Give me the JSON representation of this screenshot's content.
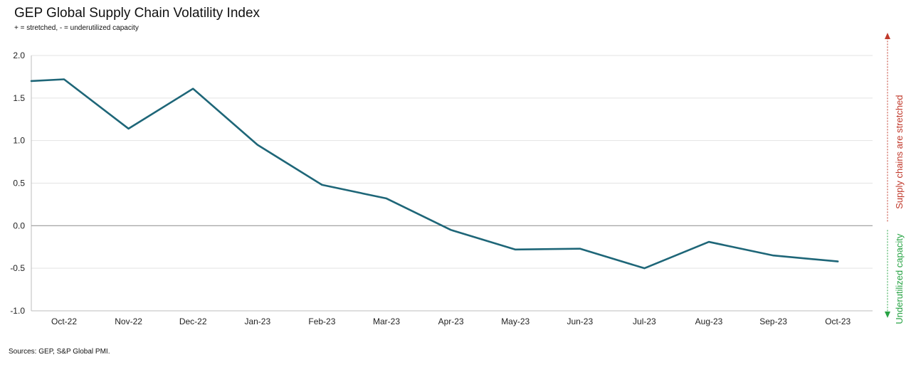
{
  "chart_data": {
    "type": "line",
    "title": "GEP Global Supply Chain Volatility Index",
    "subtitle": "+ = stretched, - = underutilized capacity",
    "source": "Sources: GEP, S&P Global PMI.",
    "categories": [
      "Oct-22",
      "Nov-22",
      "Dec-22",
      "Jan-23",
      "Feb-23",
      "Mar-23",
      "Apr-23",
      "May-23",
      "Jun-23",
      "Jul-23",
      "Aug-23",
      "Sep-23",
      "Oct-23"
    ],
    "series": [
      {
        "values": [
          1.72,
          1.14,
          1.61,
          0.95,
          0.48,
          0.32,
          -0.05,
          -0.28,
          -0.27,
          -0.5,
          -0.19,
          -0.35,
          -0.42
        ],
        "color": "#1e6678"
      }
    ],
    "series_start_value": 1.7,
    "ylim": [
      -1.0,
      2.0
    ],
    "yticks": [
      2.0,
      1.5,
      1.0,
      0.5,
      0.0,
      -0.5,
      -1.0
    ],
    "ytick_labels": [
      "2.0",
      "1.5",
      "1.0",
      "0.5",
      "0.0",
      "-0.5",
      "-1.0"
    ],
    "grid": true,
    "zero_line": true,
    "legend": "none",
    "annotations": {
      "up_label": "Supply chains are stretched",
      "up_color": "#c0392b",
      "down_label": "Underutilized capacity",
      "down_color": "#27a344"
    }
  }
}
